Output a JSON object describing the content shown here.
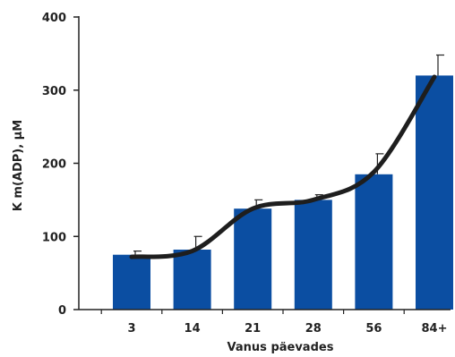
{
  "colors": {
    "bar": "#0b4ea2",
    "curve": "#1e1e1e",
    "axis": "#222222",
    "error": "#222222",
    "background": "#ffffff"
  },
  "chart_data": {
    "type": "bar",
    "title": "",
    "xlabel": "Vanus päevades",
    "ylabel": "K m(ADP), μM",
    "categories": [
      "3",
      "14",
      "21",
      "28",
      "56",
      "84+"
    ],
    "series": [
      {
        "values": [
          75,
          82,
          138,
          150,
          185,
          320
        ]
      }
    ],
    "errors": [
      5,
      18,
      12,
      7,
      28,
      28
    ],
    "trend_curve": {
      "values": [
        72,
        80,
        138,
        150,
        188,
        318
      ]
    },
    "ylim": [
      0,
      400
    ],
    "yticks": [
      0,
      100,
      200,
      300,
      400
    ],
    "grid": false,
    "legend": "none"
  }
}
